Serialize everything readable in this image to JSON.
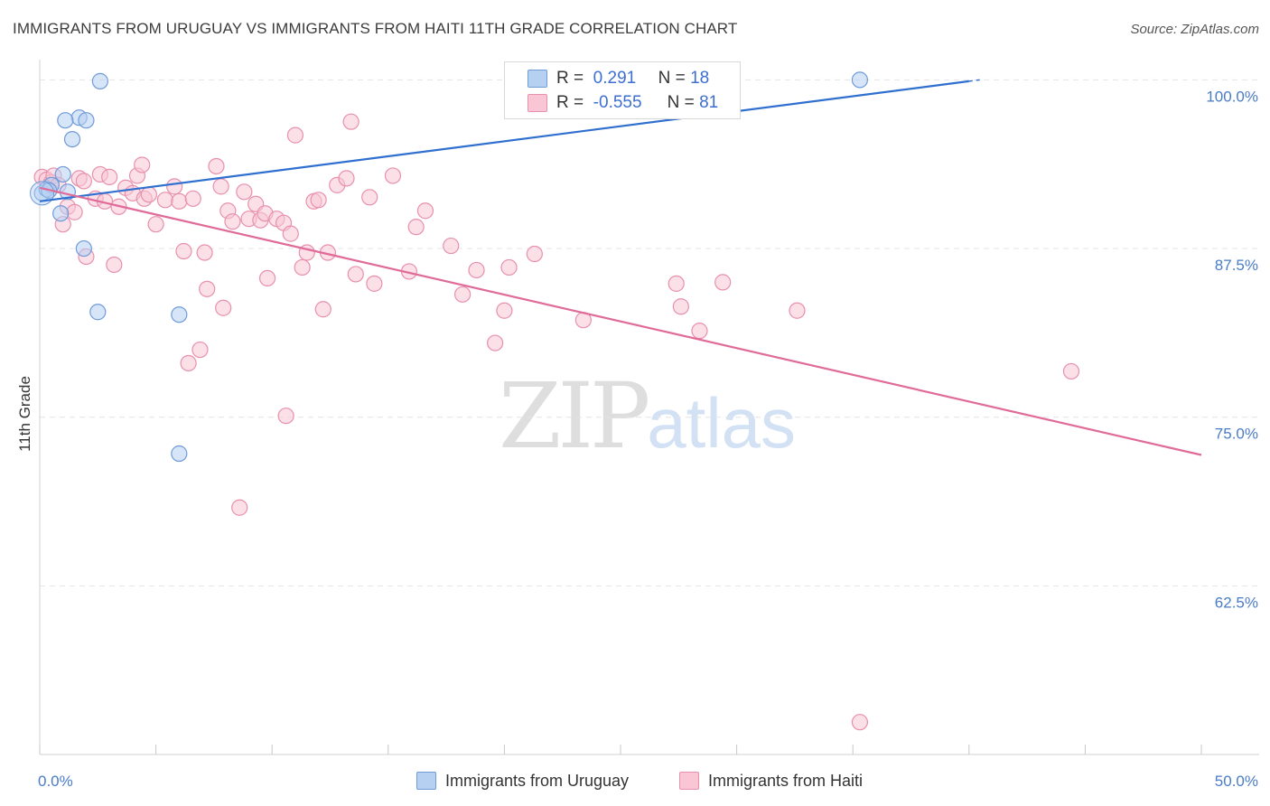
{
  "title": "IMMIGRANTS FROM URUGUAY VS IMMIGRANTS FROM HAITI 11TH GRADE CORRELATION CHART",
  "source": "Source: ZipAtlas.com",
  "watermark": {
    "zip": "ZIP",
    "atlas": "atlas"
  },
  "stats": [
    {
      "r_label": "R =",
      "r_value": "0.291",
      "n_label": "N =",
      "n_value": "18"
    },
    {
      "r_label": "R =",
      "r_value": "-0.555",
      "n_label": "N =",
      "n_value": "81"
    }
  ],
  "legend": [
    {
      "label": "Immigrants from Uruguay"
    },
    {
      "label": "Immigrants from Haiti"
    }
  ],
  "colors": {
    "uruguay_fill": "#b6d0f2",
    "uruguay_stroke": "#6f9bd9",
    "uruguay_line": "#2f6fcf",
    "haiti_fill": "#f8c6d5",
    "haiti_stroke": "#e890ad",
    "haiti_line": "#e06b98",
    "axis_label": "#4a7cc7",
    "grid": "#e4e4e4"
  },
  "chart_data": {
    "type": "scatter",
    "title": "IMMIGRANTS FROM URUGUAY VS IMMIGRANTS FROM HAITI 11TH GRADE CORRELATION CHART",
    "xlabel": "",
    "ylabel": "11th Grade",
    "xlim": [
      0,
      50
    ],
    "ylim": [
      50,
      101.5
    ],
    "y_ticks": [
      {
        "value": 100,
        "label": "100.0%"
      },
      {
        "value": 87.5,
        "label": "87.5%"
      },
      {
        "value": 75,
        "label": "75.0%"
      },
      {
        "value": 62.5,
        "label": "62.5%"
      }
    ],
    "x_ticks": [
      {
        "value": 0,
        "label": "0.0%"
      },
      {
        "value": 50,
        "label": "50.0%"
      }
    ],
    "x_minor_ticks": [
      0,
      5,
      10,
      15,
      20,
      25,
      30,
      35,
      40,
      45,
      50
    ],
    "grid": true,
    "legend_position": "bottom",
    "series": [
      {
        "name": "Immigrants from Uruguay",
        "points": [
          [
            0.1,
            91.6
          ],
          [
            0.3,
            91.9
          ],
          [
            0.5,
            92.2
          ],
          [
            1.0,
            93.0
          ],
          [
            1.2,
            91.7
          ],
          [
            0.9,
            90.1
          ],
          [
            1.4,
            95.6
          ],
          [
            1.7,
            97.2
          ],
          [
            1.1,
            97.0
          ],
          [
            2.0,
            97.0
          ],
          [
            2.6,
            99.9
          ],
          [
            1.9,
            87.5
          ],
          [
            2.5,
            82.8
          ],
          [
            6.0,
            82.6
          ],
          [
            6.0,
            72.3
          ],
          [
            23.7,
            100.0
          ],
          [
            35.3,
            100.0
          ],
          [
            0.4,
            91.8
          ]
        ],
        "trend": {
          "x": [
            0,
            40
          ],
          "y": [
            91.0,
            99.9
          ],
          "dash_to": 40.5
        }
      },
      {
        "name": "Immigrants from Haiti",
        "points": [
          [
            0.1,
            92.8
          ],
          [
            0.3,
            92.6
          ],
          [
            0.5,
            92.4
          ],
          [
            0.6,
            92.9
          ],
          [
            0.8,
            92.2
          ],
          [
            1.0,
            89.3
          ],
          [
            1.2,
            90.6
          ],
          [
            1.5,
            90.2
          ],
          [
            1.7,
            92.7
          ],
          [
            1.9,
            92.5
          ],
          [
            2.0,
            86.9
          ],
          [
            2.4,
            91.2
          ],
          [
            2.6,
            93.0
          ],
          [
            2.8,
            91.0
          ],
          [
            3.0,
            92.8
          ],
          [
            3.2,
            86.3
          ],
          [
            3.4,
            90.6
          ],
          [
            3.7,
            92.0
          ],
          [
            4.0,
            91.6
          ],
          [
            4.2,
            92.9
          ],
          [
            4.4,
            93.7
          ],
          [
            4.5,
            91.2
          ],
          [
            4.7,
            91.5
          ],
          [
            5.0,
            89.3
          ],
          [
            5.4,
            91.1
          ],
          [
            5.8,
            92.1
          ],
          [
            6.0,
            91.0
          ],
          [
            6.2,
            87.3
          ],
          [
            6.4,
            79.0
          ],
          [
            6.6,
            91.2
          ],
          [
            6.9,
            80.0
          ],
          [
            7.1,
            87.2
          ],
          [
            7.2,
            84.5
          ],
          [
            7.6,
            93.6
          ],
          [
            7.8,
            92.1
          ],
          [
            7.9,
            83.1
          ],
          [
            8.1,
            90.3
          ],
          [
            8.3,
            89.5
          ],
          [
            8.6,
            68.3
          ],
          [
            8.8,
            91.7
          ],
          [
            9.0,
            89.7
          ],
          [
            9.3,
            90.8
          ],
          [
            9.5,
            89.6
          ],
          [
            9.7,
            90.1
          ],
          [
            9.8,
            85.3
          ],
          [
            10.2,
            89.7
          ],
          [
            10.5,
            89.4
          ],
          [
            10.6,
            75.1
          ],
          [
            10.8,
            88.6
          ],
          [
            11.0,
            95.9
          ],
          [
            11.3,
            86.1
          ],
          [
            11.5,
            87.2
          ],
          [
            11.8,
            91.0
          ],
          [
            12.0,
            91.1
          ],
          [
            12.2,
            83.0
          ],
          [
            12.4,
            87.2
          ],
          [
            12.8,
            92.2
          ],
          [
            13.2,
            92.7
          ],
          [
            13.4,
            96.9
          ],
          [
            13.6,
            85.6
          ],
          [
            14.2,
            91.3
          ],
          [
            14.4,
            84.9
          ],
          [
            15.2,
            92.9
          ],
          [
            15.9,
            85.8
          ],
          [
            16.2,
            89.1
          ],
          [
            16.6,
            90.3
          ],
          [
            17.7,
            87.7
          ],
          [
            18.2,
            84.1
          ],
          [
            18.8,
            85.9
          ],
          [
            19.6,
            80.5
          ],
          [
            20.0,
            82.9
          ],
          [
            20.2,
            86.1
          ],
          [
            21.3,
            87.1
          ],
          [
            23.4,
            82.2
          ],
          [
            27.4,
            84.9
          ],
          [
            27.6,
            83.2
          ],
          [
            28.4,
            81.4
          ],
          [
            29.4,
            85.0
          ],
          [
            32.6,
            82.9
          ],
          [
            44.4,
            78.4
          ],
          [
            35.3,
            52.4
          ]
        ],
        "trend": {
          "x": [
            0,
            50
          ],
          "y": [
            92.0,
            72.2
          ]
        }
      }
    ]
  }
}
